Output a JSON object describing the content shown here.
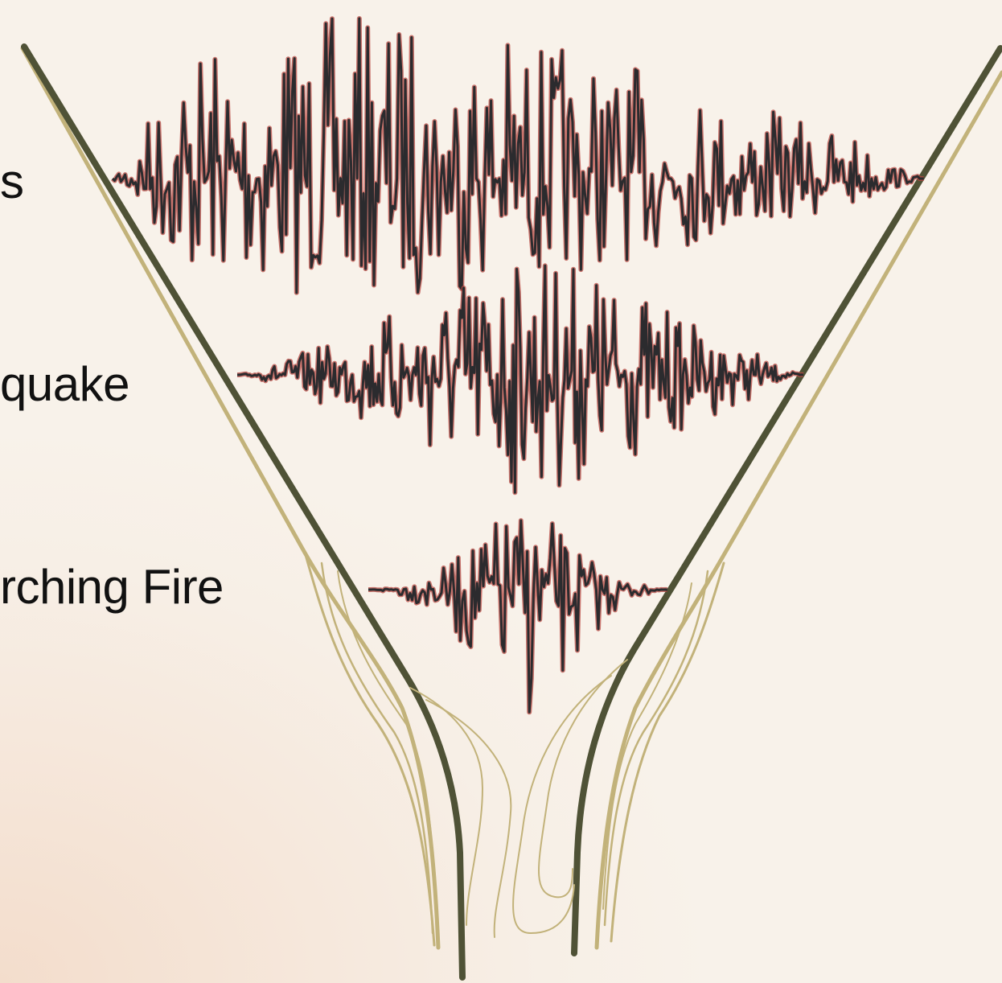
{
  "labels": [
    {
      "text": "s"
    },
    {
      "text": "quake"
    },
    {
      "text": "rching Fire"
    }
  ],
  "colors": {
    "funnel_dark": "#4f5236",
    "funnel_light": "#c2b27a",
    "wave_core": "#2b2b2e",
    "wave_halo": "#b94a43"
  }
}
